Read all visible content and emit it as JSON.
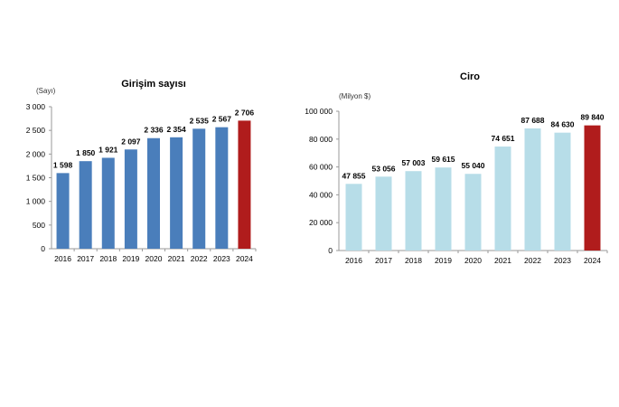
{
  "chart_data": [
    {
      "type": "bar",
      "title": "Girişim sayısı",
      "ylabel": "(Sayı)",
      "xlabel": "",
      "categories": [
        "2016",
        "2017",
        "2018",
        "2019",
        "2020",
        "2021",
        "2022",
        "2023",
        "2024"
      ],
      "values": [
        1598,
        1850,
        1921,
        2097,
        2336,
        2354,
        2535,
        2567,
        2706
      ],
      "value_labels": [
        "1 598",
        "1 850",
        "1 921",
        "2 097",
        "2 336",
        "2 354",
        "2 535",
        "2 567",
        "2 706"
      ],
      "ylim": [
        0,
        3000
      ],
      "yticks": [
        0,
        500,
        1000,
        1500,
        2000,
        2500,
        3000
      ],
      "ytick_labels": [
        "0",
        "500",
        "1 000",
        "1 500",
        "2 000",
        "2 500",
        "3 000"
      ],
      "grid": false,
      "colors": {
        "bar": "#4a7ebb",
        "highlight": "#b01c1c"
      }
    },
    {
      "type": "bar",
      "title": "Ciro",
      "ylabel": "(Milyon $)",
      "xlabel": "",
      "categories": [
        "2016",
        "2017",
        "2018",
        "2019",
        "2020",
        "2021",
        "2022",
        "2023",
        "2024"
      ],
      "values": [
        47855,
        53056,
        57003,
        59615,
        55040,
        74651,
        87688,
        84630,
        89840
      ],
      "value_labels": [
        "47 855",
        "53 056",
        "57 003",
        "59 615",
        "55 040",
        "74 651",
        "87 688",
        "84 630",
        "89 840"
      ],
      "ylim": [
        0,
        100000
      ],
      "yticks": [
        0,
        20000,
        40000,
        60000,
        80000,
        100000
      ],
      "ytick_labels": [
        "0",
        "20 000",
        "40 000",
        "60 000",
        "80 000",
        "100 000"
      ],
      "grid": false,
      "colors": {
        "bar": "#b7dde8",
        "highlight": "#b01c1c"
      }
    }
  ]
}
